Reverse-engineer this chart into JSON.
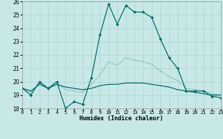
{
  "title": "",
  "xlabel": "Humidex (Indice chaleur)",
  "background_color": "#c8e8e8",
  "grid_color": "#b0d4d4",
  "line_color": "#006868",
  "x_values": [
    0,
    1,
    2,
    3,
    4,
    5,
    6,
    7,
    8,
    9,
    10,
    11,
    12,
    13,
    14,
    15,
    16,
    17,
    18,
    19,
    20,
    21,
    22,
    23
  ],
  "series1": [
    19.5,
    19.0,
    20.0,
    19.5,
    20.0,
    18.0,
    18.5,
    18.3,
    20.3,
    23.5,
    25.8,
    24.3,
    25.7,
    25.2,
    25.2,
    24.8,
    23.2,
    21.8,
    21.0,
    19.3,
    19.3,
    19.3,
    18.9,
    18.8
  ],
  "series2": [
    19.5,
    19.3,
    19.8,
    19.5,
    19.8,
    19.6,
    19.5,
    19.4,
    19.5,
    19.7,
    19.8,
    19.8,
    19.9,
    19.9,
    19.9,
    19.8,
    19.7,
    19.6,
    19.4,
    19.3,
    19.2,
    19.1,
    19.0,
    19.0
  ],
  "series3": [
    19.5,
    19.2,
    19.9,
    19.5,
    19.9,
    19.4,
    19.3,
    19.2,
    19.8,
    20.5,
    21.5,
    21.2,
    21.8,
    21.6,
    21.5,
    21.3,
    20.8,
    20.4,
    20.1,
    19.5,
    19.4,
    19.3,
    19.1,
    19.0
  ],
  "ylim": [
    18,
    26
  ],
  "xlim": [
    0,
    23
  ],
  "yticks": [
    18,
    19,
    20,
    21,
    22,
    23,
    24,
    25,
    26
  ],
  "xtick_labels": [
    "0",
    "1",
    "2",
    "3",
    "4",
    "5",
    "6",
    "7",
    "8",
    "9",
    "10",
    "11",
    "12",
    "13",
    "14",
    "15",
    "16",
    "17",
    "18",
    "19",
    "20",
    "21",
    "22",
    "23"
  ]
}
